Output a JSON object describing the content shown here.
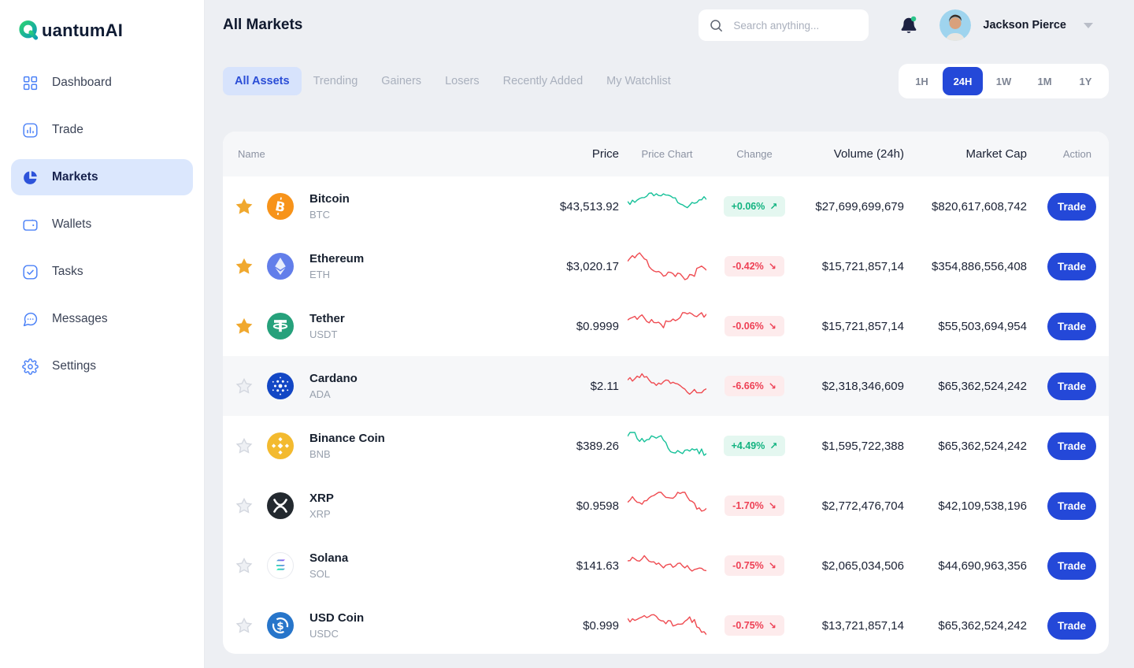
{
  "brand": {
    "name": "QuantumAI",
    "name_rest": "uantumAI"
  },
  "sidebar": {
    "items": [
      {
        "label": "Dashboard",
        "icon": "dashboard-icon",
        "active": false
      },
      {
        "label": "Trade",
        "icon": "trade-icon",
        "active": false
      },
      {
        "label": "Markets",
        "icon": "markets-icon",
        "active": true
      },
      {
        "label": "Wallets",
        "icon": "wallets-icon",
        "active": false
      },
      {
        "label": "Tasks",
        "icon": "tasks-icon",
        "active": false
      },
      {
        "label": "Messages",
        "icon": "messages-icon",
        "active": false
      },
      {
        "label": "Settings",
        "icon": "settings-icon",
        "active": false
      }
    ]
  },
  "topbar": {
    "title": "All Markets",
    "search_placeholder": "Search anything...",
    "user_name": "Jackson Pierce"
  },
  "tabs": [
    {
      "label": "All Assets",
      "active": true
    },
    {
      "label": "Trending",
      "active": false
    },
    {
      "label": "Gainers",
      "active": false
    },
    {
      "label": "Losers",
      "active": false
    },
    {
      "label": "Recently Added",
      "active": false
    },
    {
      "label": "My Watchlist",
      "active": false
    }
  ],
  "timeranges": [
    {
      "label": "1H",
      "active": false
    },
    {
      "label": "24H",
      "active": true
    },
    {
      "label": "1W",
      "active": false
    },
    {
      "label": "1M",
      "active": false
    },
    {
      "label": "1Y",
      "active": false
    }
  ],
  "glyphs": {
    "up_arrow": "↗",
    "down_arrow": "↘"
  },
  "colors": {
    "accent_blue": "#2448d8",
    "active_nav_bg": "#dbe7fd",
    "up_green": "#12b380",
    "up_bg": "#e4f7f0",
    "down_red": "#ee4055",
    "down_bg": "#fdebec",
    "spark_up": "#16c199",
    "spark_down": "#ef4b51",
    "star_gold": "#f0a82e"
  },
  "table": {
    "columns": [
      "Name",
      "Price",
      "Price Chart",
      "Change",
      "Volume (24h)",
      "Market Cap",
      "Action"
    ],
    "action_label": "Trade",
    "rows": [
      {
        "name": "Bitcoin",
        "symbol": "BTC",
        "icon": "btc",
        "price": "$43,513.92",
        "change": "+0.06%",
        "direction": "up",
        "volume": "$27,699,699,679",
        "market_cap": "$820,617,608,742",
        "starred": true,
        "highlighted": false
      },
      {
        "name": "Ethereum",
        "symbol": "ETH",
        "icon": "eth",
        "price": "$3,020.17",
        "change": "-0.42%",
        "direction": "down",
        "volume": "$15,721,857,14",
        "market_cap": "$354,886,556,408",
        "starred": true,
        "highlighted": false
      },
      {
        "name": "Tether",
        "symbol": "USDT",
        "icon": "usdt",
        "price": "$0.9999",
        "change": "-0.06%",
        "direction": "down",
        "volume": "$15,721,857,14",
        "market_cap": "$55,503,694,954",
        "starred": true,
        "highlighted": false
      },
      {
        "name": "Cardano",
        "symbol": "ADA",
        "icon": "ada",
        "price": "$2.11",
        "change": "-6.66%",
        "direction": "down",
        "volume": "$2,318,346,609",
        "market_cap": "$65,362,524,242",
        "starred": false,
        "highlighted": true
      },
      {
        "name": "Binance Coin",
        "symbol": "BNB",
        "icon": "bnb",
        "price": "$389.26",
        "change": "+4.49%",
        "direction": "up",
        "volume": "$1,595,722,388",
        "market_cap": "$65,362,524,242",
        "starred": false,
        "highlighted": false
      },
      {
        "name": "XRP",
        "symbol": "XRP",
        "icon": "xrp",
        "price": "$0.9598",
        "change": "-1.70%",
        "direction": "down",
        "volume": "$2,772,476,704",
        "market_cap": "$42,109,538,196",
        "starred": false,
        "highlighted": false
      },
      {
        "name": "Solana",
        "symbol": "SOL",
        "icon": "sol",
        "price": "$141.63",
        "change": "-0.75%",
        "direction": "down",
        "volume": "$2,065,034,506",
        "market_cap": "$44,690,963,356",
        "starred": false,
        "highlighted": false
      },
      {
        "name": "USD Coin",
        "symbol": "USDC",
        "icon": "usdc",
        "price": "$0.999",
        "change": "-0.75%",
        "direction": "down",
        "volume": "$13,721,857,14",
        "market_cap": "$65,362,524,242",
        "starred": false,
        "highlighted": false
      }
    ]
  }
}
